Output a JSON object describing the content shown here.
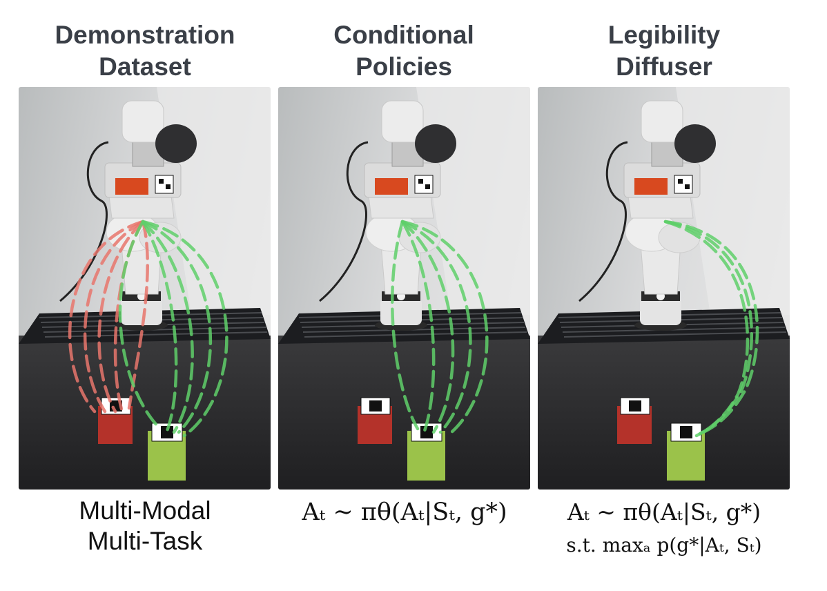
{
  "columns": [
    {
      "heading_lines": [
        "Demonstration",
        "Dataset"
      ],
      "caption_lines": [
        "Multi-Modal",
        "Multi-Task"
      ]
    },
    {
      "heading_lines": [
        "Conditional",
        "Policies"
      ],
      "caption_lines": [
        "Aₜ ∼ πθ(Aₜ|Sₜ, g*)"
      ]
    },
    {
      "heading_lines": [
        "Legibility",
        "Diffuser"
      ],
      "caption_lines": [
        "Aₜ ∼ πθ(Aₜ|Sₜ, g*)",
        "s.t.  maxₐ p(g*|Aₜ, Sₜ)"
      ]
    }
  ],
  "colors": {
    "heading": "#3a3f47",
    "trajectory_red": "#e8756c",
    "trajectory_green": "#5fcf6a",
    "red_block": "#b4322a",
    "green_block": "#9bc24a"
  },
  "trajectories": {
    "panel_1": [
      "red",
      "green"
    ],
    "panel_2": [
      "green"
    ],
    "panel_3": [
      "green"
    ]
  }
}
